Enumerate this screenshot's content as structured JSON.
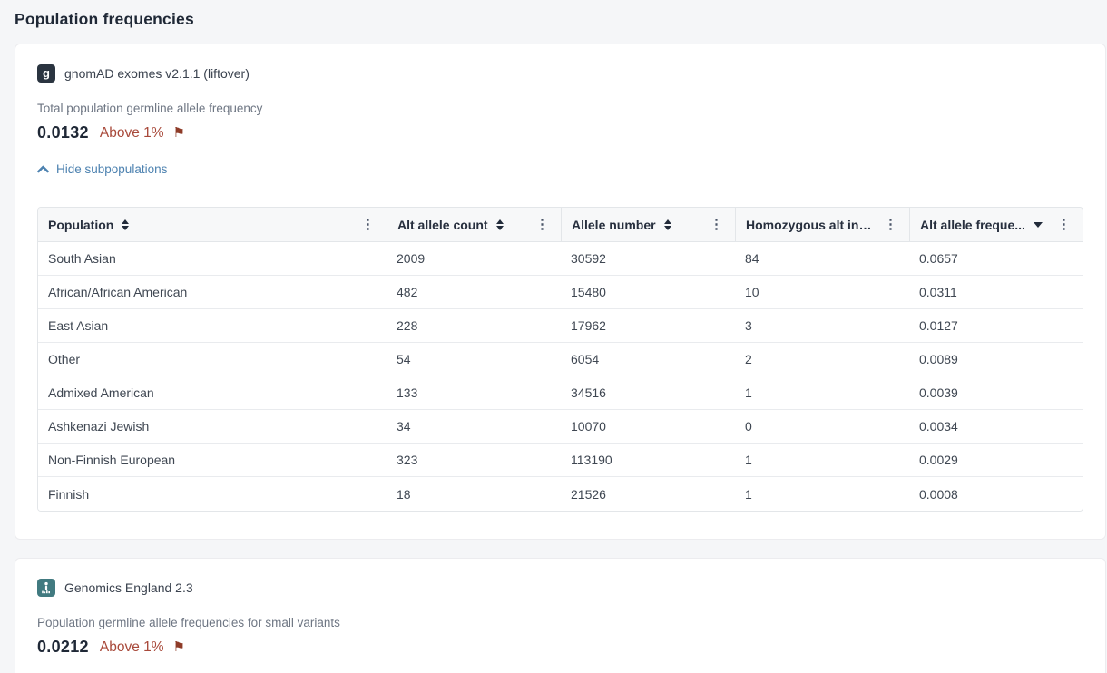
{
  "page": {
    "title": "Population frequencies"
  },
  "icons": {
    "kebab": "⋮",
    "flag": "⚑",
    "gnomad_badge": "g"
  },
  "colors": {
    "accent_red": "#a8493a",
    "flag_red": "#8e3b28",
    "link_blue": "#4d82b0",
    "badge_dark": "#2a3440",
    "badge_teal": "#417a80"
  },
  "gnomad": {
    "source_name": "gnomAD exomes v2.1.1 (liftover)",
    "freq_label": "Total population germline allele frequency",
    "freq_value": "0.0132",
    "freq_flag": "Above 1%",
    "toggle_label": "Hide subpopulations",
    "table": {
      "columns": [
        {
          "label": "Population",
          "sort": "both"
        },
        {
          "label": "Alt allele count",
          "sort": "both"
        },
        {
          "label": "Allele number",
          "sort": "both"
        },
        {
          "label": "Homozygous alt ind...",
          "sort": "none"
        },
        {
          "label": "Alt allele freque...",
          "sort": "desc"
        }
      ],
      "rows": [
        {
          "population": "South Asian",
          "alt_allele_count": "2009",
          "allele_number": "30592",
          "homozygous_alt": "84",
          "alt_allele_freq": "0.0657"
        },
        {
          "population": "African/African American",
          "alt_allele_count": "482",
          "allele_number": "15480",
          "homozygous_alt": "10",
          "alt_allele_freq": "0.0311"
        },
        {
          "population": "East Asian",
          "alt_allele_count": "228",
          "allele_number": "17962",
          "homozygous_alt": "3",
          "alt_allele_freq": "0.0127"
        },
        {
          "population": "Other",
          "alt_allele_count": "54",
          "allele_number": "6054",
          "homozygous_alt": "2",
          "alt_allele_freq": "0.0089"
        },
        {
          "population": "Admixed American",
          "alt_allele_count": "133",
          "allele_number": "34516",
          "homozygous_alt": "1",
          "alt_allele_freq": "0.0039"
        },
        {
          "population": "Ashkenazi Jewish",
          "alt_allele_count": "34",
          "allele_number": "10070",
          "homozygous_alt": "0",
          "alt_allele_freq": "0.0034"
        },
        {
          "population": "Non-Finnish European",
          "alt_allele_count": "323",
          "allele_number": "113190",
          "homozygous_alt": "1",
          "alt_allele_freq": "0.0029"
        },
        {
          "population": "Finnish",
          "alt_allele_count": "18",
          "allele_number": "21526",
          "homozygous_alt": "1",
          "alt_allele_freq": "0.0008"
        }
      ]
    }
  },
  "genomics_england": {
    "source_name": "Genomics England 2.3",
    "freq_label": "Population germline allele frequencies for small variants",
    "freq_value": "0.0212",
    "freq_flag": "Above 1%"
  }
}
